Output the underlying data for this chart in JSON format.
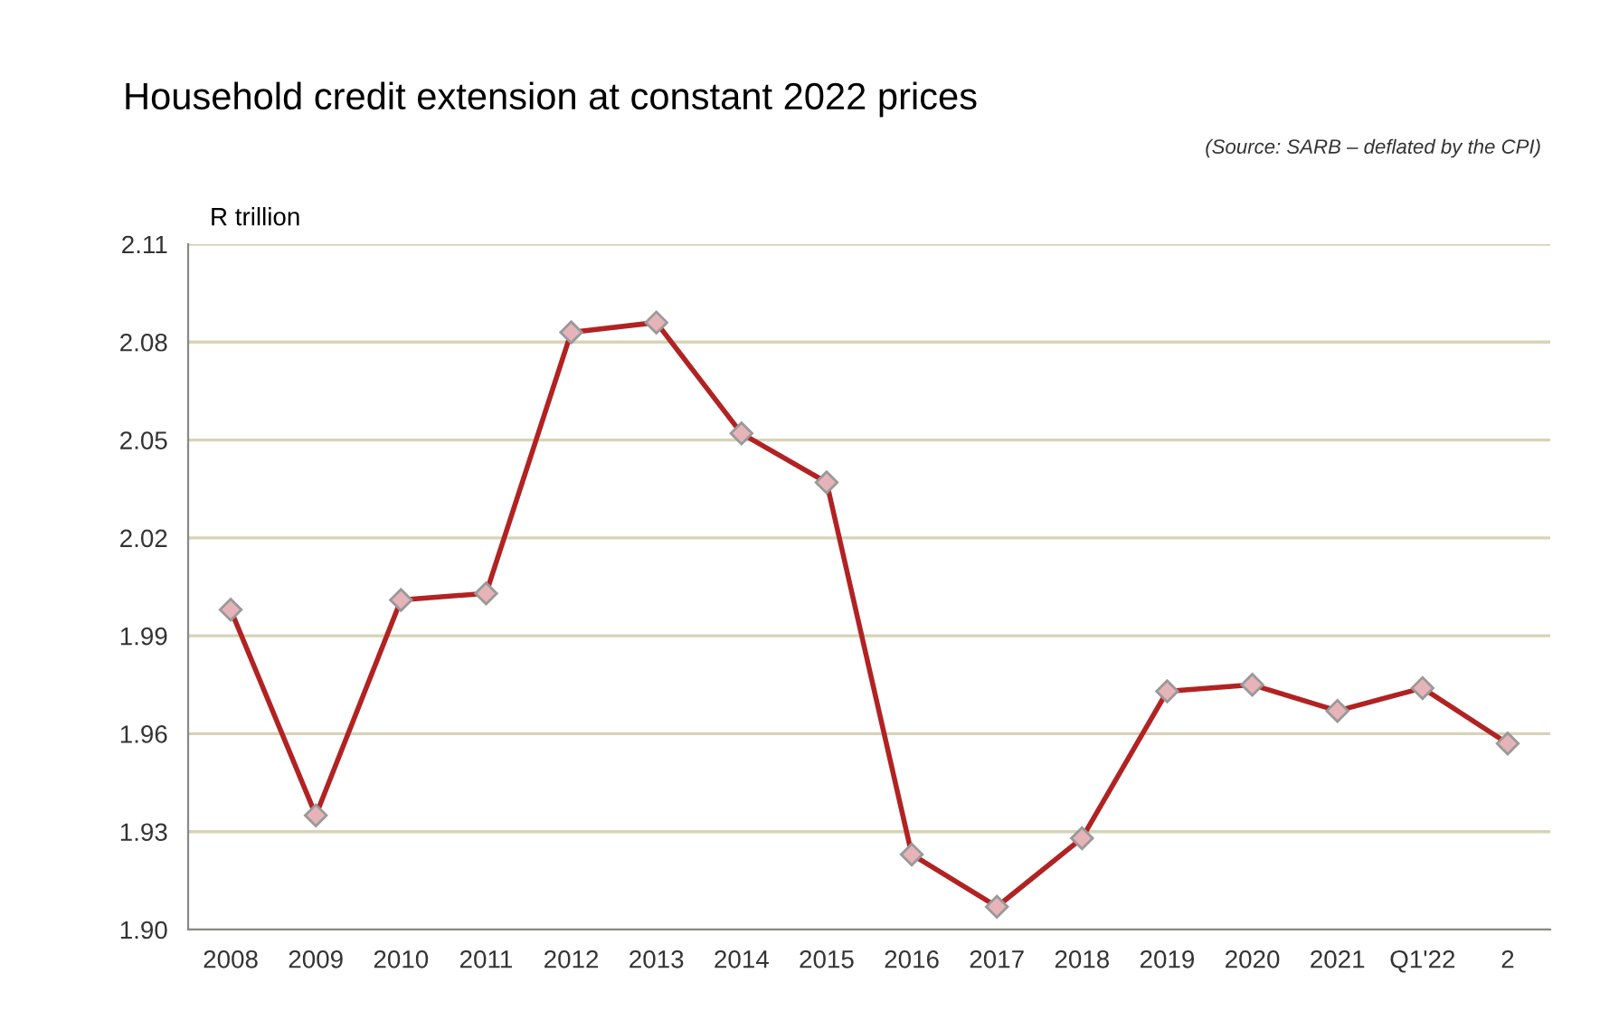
{
  "chart_data": {
    "type": "line",
    "title": "Household credit extension at constant 2022 prices",
    "annotations": [
      "(Source: SARB – deflated by the CPI)"
    ],
    "ylabel": "R trillion",
    "categories": [
      "2008",
      "2009",
      "2010",
      "2011",
      "2012",
      "2013",
      "2014",
      "2015",
      "2016",
      "2017",
      "2018",
      "2019",
      "2020",
      "2021",
      "Q1'22",
      "2"
    ],
    "series": [
      {
        "color": "#b22222",
        "values": [
          1.998,
          1.935,
          2.001,
          2.003,
          2.083,
          2.086,
          2.052,
          2.037,
          1.923,
          1.907,
          1.928,
          1.973,
          1.975,
          1.967,
          1.974,
          1.957
        ]
      }
    ],
    "ylim": [
      1.9,
      2.11
    ],
    "yticks": [
      {
        "value": 1.9,
        "label": "1.90"
      },
      1.93,
      1.96,
      1.99,
      2.02,
      2.05,
      2.08,
      2.11
    ],
    "grid": "y",
    "marker": "diamond",
    "line_style": "solid",
    "legend": false
  }
}
